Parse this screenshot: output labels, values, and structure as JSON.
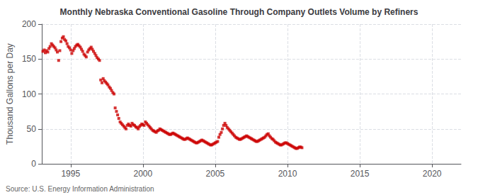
{
  "chart_data": {
    "type": "scatter",
    "title": "Monthly Nebraska Conventional Gasoline Through Company Outlets Volume by Refiners",
    "ylabel": "Thousand Gallons per Day",
    "annotations": [
      "Source: U.S. Energy Information Administration"
    ],
    "color": "#cc0000",
    "marker": "square",
    "grid": true,
    "xlim": [
      1993.0,
      2022.0
    ],
    "ylim": [
      0,
      200
    ],
    "xticks": [
      1995,
      2000,
      2005,
      2010,
      2015,
      2020
    ],
    "yticks": [
      0,
      50,
      100,
      150,
      200
    ],
    "x": [
      1993.08,
      1993.17,
      1993.25,
      1993.33,
      1993.42,
      1993.5,
      1993.58,
      1993.67,
      1993.75,
      1993.83,
      1993.92,
      1994.0,
      1994.08,
      1994.17,
      1994.25,
      1994.33,
      1994.42,
      1994.5,
      1994.58,
      1994.67,
      1994.75,
      1994.83,
      1994.92,
      1995.0,
      1995.08,
      1995.17,
      1995.25,
      1995.33,
      1995.42,
      1995.5,
      1995.58,
      1995.67,
      1995.75,
      1995.83,
      1995.92,
      1996.0,
      1996.08,
      1996.17,
      1996.25,
      1996.33,
      1996.42,
      1996.5,
      1996.58,
      1996.67,
      1996.75,
      1996.83,
      1996.92,
      1997.0,
      1997.08,
      1997.17,
      1997.25,
      1997.33,
      1997.42,
      1997.5,
      1997.58,
      1997.67,
      1997.75,
      1997.83,
      1997.92,
      1998.0,
      1998.08,
      1998.17,
      1998.25,
      1998.33,
      1998.42,
      1998.5,
      1998.58,
      1998.67,
      1998.75,
      1998.83,
      1998.92,
      1999.0,
      1999.08,
      1999.17,
      1999.25,
      1999.33,
      1999.42,
      1999.5,
      1999.58,
      1999.67,
      1999.75,
      1999.83,
      1999.92,
      2000.0,
      2000.08,
      2000.17,
      2000.25,
      2000.33,
      2000.42,
      2000.5,
      2000.58,
      2000.67,
      2000.75,
      2000.83,
      2000.92,
      2001.0,
      2001.08,
      2001.17,
      2001.25,
      2001.33,
      2001.42,
      2001.5,
      2001.58,
      2001.67,
      2001.75,
      2001.83,
      2001.92,
      2002.0,
      2002.08,
      2002.17,
      2002.25,
      2002.33,
      2002.42,
      2002.5,
      2002.58,
      2002.67,
      2002.75,
      2002.83,
      2002.92,
      2003.0,
      2003.08,
      2003.17,
      2003.25,
      2003.33,
      2003.42,
      2003.5,
      2003.58,
      2003.67,
      2003.75,
      2003.83,
      2003.92,
      2004.0,
      2004.08,
      2004.17,
      2004.25,
      2004.33,
      2004.42,
      2004.5,
      2004.58,
      2004.67,
      2004.75,
      2004.83,
      2004.92,
      2005.0,
      2005.08,
      2005.17,
      2005.25,
      2005.33,
      2005.42,
      2005.5,
      2005.58,
      2005.67,
      2005.75,
      2005.83,
      2005.92,
      2006.0,
      2006.08,
      2006.17,
      2006.25,
      2006.33,
      2006.42,
      2006.5,
      2006.58,
      2006.67,
      2006.75,
      2006.83,
      2006.92,
      2007.0,
      2007.08,
      2007.17,
      2007.25,
      2007.33,
      2007.42,
      2007.5,
      2007.58,
      2007.67,
      2007.75,
      2007.83,
      2007.92,
      2008.0,
      2008.08,
      2008.17,
      2008.25,
      2008.33,
      2008.42,
      2008.5,
      2008.58,
      2008.67,
      2008.75,
      2008.83,
      2008.92,
      2009.0,
      2009.08,
      2009.17,
      2009.25,
      2009.33,
      2009.42,
      2009.5,
      2009.58,
      2009.67,
      2009.75,
      2009.83,
      2009.92,
      2010.0,
      2010.08,
      2010.17,
      2010.25,
      2010.33,
      2010.42,
      2010.5,
      2010.58,
      2010.67,
      2010.75,
      2010.83,
      2010.92,
      2011.0
    ],
    "values": [
      161,
      163,
      159,
      162,
      160,
      165,
      168,
      172,
      170,
      168,
      166,
      163,
      160,
      148,
      162,
      175,
      180,
      182,
      178,
      176,
      172,
      168,
      166,
      163,
      158,
      162,
      165,
      168,
      170,
      171,
      169,
      167,
      164,
      161,
      157,
      155,
      153,
      160,
      163,
      165,
      167,
      164,
      161,
      158,
      155,
      152,
      150,
      148,
      120,
      116,
      122,
      119,
      117,
      115,
      113,
      110,
      108,
      105,
      102,
      100,
      80,
      75,
      70,
      65,
      60,
      58,
      56,
      54,
      52,
      50,
      55,
      57,
      55,
      54,
      58,
      56,
      55,
      53,
      52,
      50,
      53,
      55,
      57,
      56,
      55,
      60,
      58,
      56,
      54,
      52,
      50,
      48,
      47,
      46,
      45,
      47,
      48,
      50,
      49,
      48,
      47,
      46,
      45,
      44,
      43,
      42,
      42,
      43,
      44,
      43,
      42,
      41,
      40,
      39,
      38,
      37,
      36,
      35,
      35,
      36,
      37,
      36,
      35,
      34,
      33,
      32,
      31,
      30,
      30,
      31,
      32,
      33,
      34,
      33,
      32,
      31,
      30,
      29,
      28,
      27,
      27,
      28,
      29,
      30,
      31,
      32,
      38,
      42,
      45,
      50,
      55,
      58,
      55,
      52,
      50,
      48,
      46,
      44,
      42,
      40,
      38,
      37,
      36,
      35,
      35,
      36,
      37,
      38,
      39,
      40,
      39,
      38,
      37,
      36,
      35,
      34,
      33,
      32,
      32,
      33,
      34,
      35,
      36,
      37,
      38,
      40,
      42,
      43,
      40,
      38,
      36,
      35,
      33,
      31,
      30,
      29,
      28,
      27,
      27,
      28,
      29,
      30,
      30,
      29,
      28,
      27,
      26,
      25,
      24,
      23,
      22,
      22,
      23,
      24,
      24,
      23
    ]
  }
}
